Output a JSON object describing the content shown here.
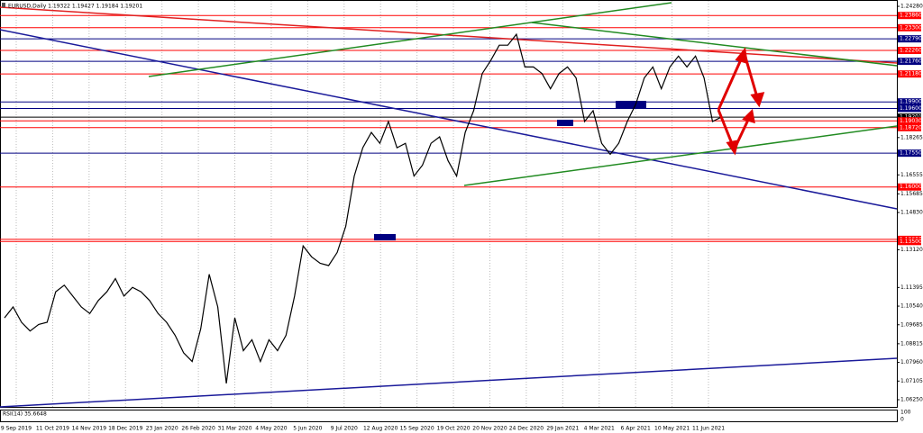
{
  "chart_data": {
    "type": "line",
    "title": "EURUSD,Daily 1.19322 1.19427 1.19184 1.19201",
    "color": "#000000",
    "values": [
      1.1,
      1.105,
      1.098,
      1.094,
      1.097,
      1.098,
      1.112,
      1.115,
      1.11,
      1.105,
      1.102,
      1.108,
      1.112,
      1.118,
      1.11,
      1.114,
      1.112,
      1.108,
      1.102,
      1.098,
      1.092,
      1.084,
      1.08,
      1.095,
      1.12,
      1.105,
      1.07,
      1.1,
      1.085,
      1.09,
      1.08,
      1.09,
      1.085,
      1.092,
      1.11,
      1.133,
      1.128,
      1.125,
      1.124,
      1.13,
      1.142,
      1.165,
      1.178,
      1.185,
      1.18,
      1.19,
      1.178,
      1.18,
      1.165,
      1.17,
      1.18,
      1.183,
      1.172,
      1.165,
      1.185,
      1.195,
      1.212,
      1.218,
      1.225,
      1.225,
      1.23,
      1.215,
      1.215,
      1.212,
      1.205,
      1.212,
      1.215,
      1.21,
      1.19,
      1.195,
      1.18,
      1.175,
      1.18,
      1.19,
      1.198,
      1.21,
      1.215,
      1.205,
      1.215,
      1.22,
      1.215,
      1.22,
      1.21,
      1.19,
      1.192
    ],
    "ylim": [
      1.0588,
      1.2457
    ],
    "yticks": [
      {
        "value": 1.2428,
        "label": "1.24280"
      },
      {
        "value": 1.18265,
        "label": "1.18265"
      },
      {
        "value": 1.16555,
        "label": "1.16555"
      },
      {
        "value": 1.15685,
        "label": "1.15685"
      },
      {
        "value": 1.1483,
        "label": "1.14830"
      },
      {
        "value": 1.1312,
        "label": "1.13120"
      },
      {
        "value": 1.11395,
        "label": "1.11395"
      },
      {
        "value": 1.1054,
        "label": "1.10540"
      },
      {
        "value": 1.09685,
        "label": "1.09685"
      },
      {
        "value": 1.08815,
        "label": "1.08815"
      },
      {
        "value": 1.0796,
        "label": "1.07960"
      },
      {
        "value": 1.07105,
        "label": "1.07105"
      },
      {
        "value": 1.0625,
        "label": "1.06250"
      }
    ],
    "date_ticks": [
      "9 Sep 2019",
      "11 Oct 2019",
      "14 Nov 2019",
      "18 Dec 2019",
      "23 Jan 2020",
      "26 Feb 2020",
      "31 Mar 2020",
      "4 May 2020",
      "5 Jun 2020",
      "9 Jul 2020",
      "12 Aug 2020",
      "15 Sep 2020",
      "19 Oct 2020",
      "20 Nov 2020",
      "24 Dec 2020",
      "29 Jan 2021",
      "4 Mar 2021",
      "6 Apr 2021",
      "10 May 2021",
      "11 Jun 2021"
    ],
    "grid": true,
    "levels": [
      {
        "value": 1.2386,
        "label": "1.23860",
        "color": "#ff0000"
      },
      {
        "value": 1.233,
        "label": "1.23300",
        "color": "#ff0000"
      },
      {
        "value": 1.2279,
        "label": "1.22790",
        "color": "#000080"
      },
      {
        "value": 1.2226,
        "label": "1.22260",
        "color": "#ff0000"
      },
      {
        "value": 1.2176,
        "label": "1.21760",
        "color": "#000080"
      },
      {
        "value": 1.2118,
        "label": "1.21180",
        "color": "#ff0000"
      },
      {
        "value": 1.199,
        "label": "1.19900",
        "color": "#000080"
      },
      {
        "value": 1.196,
        "label": "1.19600",
        "color": "#000080"
      },
      {
        "value": 1.19201,
        "label": "1.19201",
        "color": "#000000"
      },
      {
        "value": 1.1903,
        "label": "1.19030",
        "color": "#ff0000"
      },
      {
        "value": 1.1872,
        "label": "1.18720",
        "color": "#ff0000"
      },
      {
        "value": 1.1755,
        "label": "1.17550",
        "color": "#000080"
      },
      {
        "value": 1.16,
        "label": "1.16000",
        "color": "#ff0000"
      },
      {
        "value": 1.136,
        "label": "1.13600",
        "color": "#ff0000"
      },
      {
        "value": 1.135,
        "label": "1.13500",
        "color": "#ff0000"
      }
    ],
    "indicator": {
      "label": "RSI(14) 35.6648",
      "scale": [
        "100",
        "0"
      ]
    }
  }
}
